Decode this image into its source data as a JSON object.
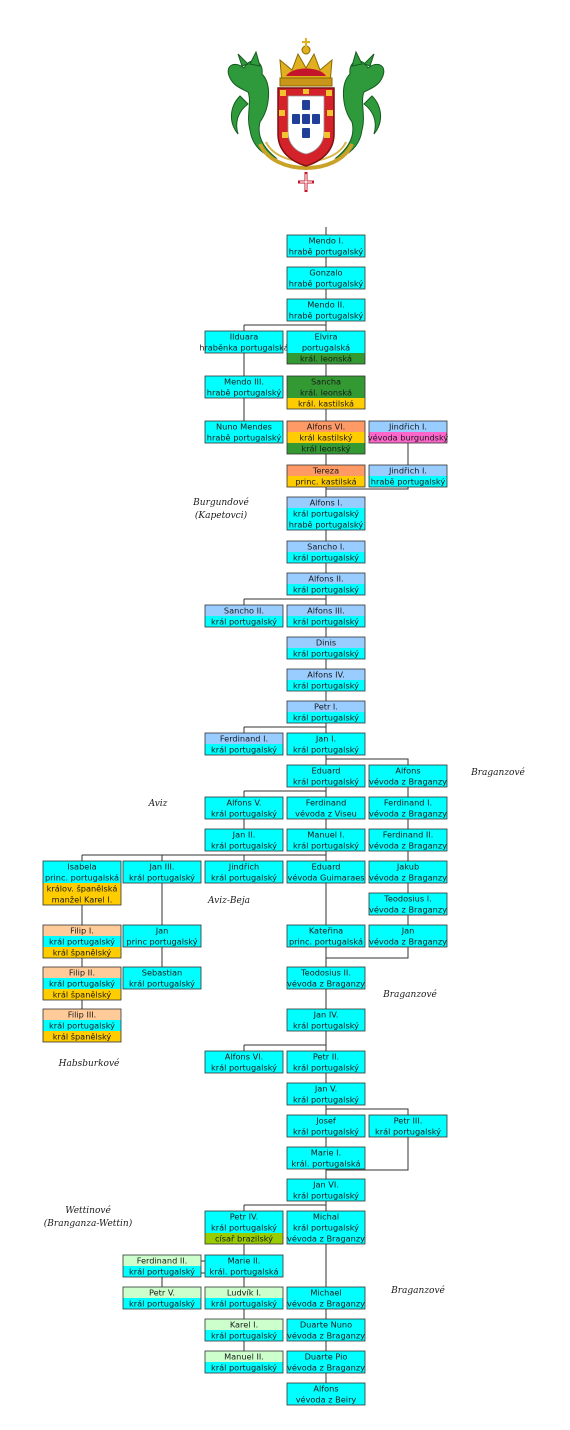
{
  "colors": {
    "portugal": "#00FFFF",
    "burgundy_house": "#99CCFF",
    "leon": "#339933",
    "castile": "#FFCC00",
    "castile_king": "#FF9966",
    "habsburg": "#FFCC99",
    "burgundy_duke": "#FF66CC",
    "brazil": "#99CC00",
    "wettin": "#CCFFCC",
    "line": "#333333"
  },
  "coat_of_arms": {
    "icon": "portuguese-royal-arms-icon"
  },
  "houses": [
    {
      "id": "burgundove",
      "lines": [
        "Burgundové",
        "(Kapetovci)"
      ]
    },
    {
      "id": "braganzove-1",
      "lines": [
        "Braganzové"
      ]
    },
    {
      "id": "aviz",
      "lines": [
        "Aviz"
      ]
    },
    {
      "id": "aviz-beja",
      "lines": [
        "Aviz-Beja"
      ]
    },
    {
      "id": "braganzove-2",
      "lines": [
        "Braganzové"
      ]
    },
    {
      "id": "habsburkove",
      "lines": [
        "Habsburkové"
      ]
    },
    {
      "id": "wettinove",
      "lines": [
        "Wettinové",
        "(Branganza-Wettin)"
      ]
    },
    {
      "id": "braganzove-3",
      "lines": [
        "Braganzové"
      ]
    }
  ],
  "people": [
    {
      "id": "mendo1",
      "lines": [
        {
          "t": "Mendo I.",
          "c": "portugal"
        },
        {
          "t": "hrabě portugalský",
          "c": "portugal"
        }
      ]
    },
    {
      "id": "gonzalo",
      "lines": [
        {
          "t": "Gonzalo",
          "c": "portugal"
        },
        {
          "t": "hrabě portugalský",
          "c": "portugal"
        }
      ]
    },
    {
      "id": "mendo2",
      "lines": [
        {
          "t": "Mendo II.",
          "c": "portugal"
        },
        {
          "t": "hrabě portugalský",
          "c": "portugal"
        }
      ]
    },
    {
      "id": "ilduara",
      "lines": [
        {
          "t": "Ilduara",
          "c": "portugal"
        },
        {
          "t": "hraběnka portugalská",
          "c": "portugal"
        }
      ]
    },
    {
      "id": "elvira",
      "lines": [
        {
          "t": "Elvira",
          "c": "portugal"
        },
        {
          "t": "portugalská",
          "c": "portugal"
        },
        {
          "t": "král. leonská",
          "c": "leon"
        }
      ]
    },
    {
      "id": "mendo3",
      "lines": [
        {
          "t": "Mendo III.",
          "c": "portugal"
        },
        {
          "t": "hrabě portugalský",
          "c": "portugal"
        }
      ]
    },
    {
      "id": "sancha",
      "lines": [
        {
          "t": "Sancha",
          "c": "leon"
        },
        {
          "t": "král. leonská",
          "c": "leon"
        },
        {
          "t": "král. kastilská",
          "c": "castile"
        }
      ]
    },
    {
      "id": "nuno",
      "lines": [
        {
          "t": "Nuno Mendes",
          "c": "portugal"
        },
        {
          "t": "hrabě portugalský",
          "c": "portugal"
        }
      ]
    },
    {
      "id": "alfons6",
      "lines": [
        {
          "t": "Alfons VI.",
          "c": "castile_king"
        },
        {
          "t": "král kastilský",
          "c": "castile"
        },
        {
          "t": "král leonský",
          "c": "leon"
        }
      ]
    },
    {
      "id": "jindrich1a",
      "lines": [
        {
          "t": "Jindřich I.",
          "c": "burgundy_house"
        },
        {
          "t": "vévoda burgundský",
          "c": "burgundy_duke"
        }
      ]
    },
    {
      "id": "tereza",
      "lines": [
        {
          "t": "Tereza",
          "c": "castile_king"
        },
        {
          "t": "princ. kastilská",
          "c": "castile"
        }
      ]
    },
    {
      "id": "jindrich1b",
      "lines": [
        {
          "t": "Jindřich I.",
          "c": "burgundy_house"
        },
        {
          "t": "hrabě portugalský",
          "c": "portugal"
        }
      ]
    },
    {
      "id": "alfons1",
      "lines": [
        {
          "t": "Alfons I.",
          "c": "burgundy_house"
        },
        {
          "t": "král portugalský",
          "c": "portugal"
        },
        {
          "t": "hrabě portugalský",
          "c": "portugal"
        }
      ]
    },
    {
      "id": "sancho1",
      "lines": [
        {
          "t": "Sancho I.",
          "c": "burgundy_house"
        },
        {
          "t": "král portugalský",
          "c": "portugal"
        }
      ]
    },
    {
      "id": "alfons2",
      "lines": [
        {
          "t": "Alfons II.",
          "c": "burgundy_house"
        },
        {
          "t": "král portugalský",
          "c": "portugal"
        }
      ]
    },
    {
      "id": "sancho2",
      "lines": [
        {
          "t": "Sancho II.",
          "c": "burgundy_house"
        },
        {
          "t": "král portugalský",
          "c": "portugal"
        }
      ]
    },
    {
      "id": "alfons3",
      "lines": [
        {
          "t": "Alfons III.",
          "c": "burgundy_house"
        },
        {
          "t": "král portugalský",
          "c": "portugal"
        }
      ]
    },
    {
      "id": "dinis",
      "lines": [
        {
          "t": "Dinis",
          "c": "burgundy_house"
        },
        {
          "t": "král portugalský",
          "c": "portugal"
        }
      ]
    },
    {
      "id": "alfons4",
      "lines": [
        {
          "t": "Alfons IV.",
          "c": "burgundy_house"
        },
        {
          "t": "král portugalský",
          "c": "portugal"
        }
      ]
    },
    {
      "id": "petr1",
      "lines": [
        {
          "t": "Petr I.",
          "c": "burgundy_house"
        },
        {
          "t": "král portugalský",
          "c": "portugal"
        }
      ]
    },
    {
      "id": "ferdinand1",
      "lines": [
        {
          "t": "Ferdinand I.",
          "c": "burgundy_house"
        },
        {
          "t": "král portugalský",
          "c": "portugal"
        }
      ]
    },
    {
      "id": "jan1",
      "lines": [
        {
          "t": "Jan I.",
          "c": "portugal"
        },
        {
          "t": "král portugalský",
          "c": "portugal"
        }
      ]
    },
    {
      "id": "eduard",
      "lines": [
        {
          "t": "Eduard",
          "c": "portugal"
        },
        {
          "t": "král portugalský",
          "c": "portugal"
        }
      ]
    },
    {
      "id": "alfons_b",
      "lines": [
        {
          "t": "Alfons",
          "c": "portugal"
        },
        {
          "t": "vévoda z Braganzy",
          "c": "portugal"
        }
      ]
    },
    {
      "id": "alfons5",
      "lines": [
        {
          "t": "Alfons V.",
          "c": "portugal"
        },
        {
          "t": "král portugalský",
          "c": "portugal"
        }
      ]
    },
    {
      "id": "ferdinand_v",
      "lines": [
        {
          "t": "Ferdinand",
          "c": "portugal"
        },
        {
          "t": "vévoda z Viseu",
          "c": "portugal"
        }
      ]
    },
    {
      "id": "ferdinand1_b",
      "lines": [
        {
          "t": "Ferdinand I.",
          "c": "portugal"
        },
        {
          "t": "vévoda z Braganzy",
          "c": "portugal"
        }
      ]
    },
    {
      "id": "jan2",
      "lines": [
        {
          "t": "Jan II.",
          "c": "portugal"
        },
        {
          "t": "král portugalský",
          "c": "portugal"
        }
      ]
    },
    {
      "id": "manuel1",
      "lines": [
        {
          "t": "Manuel I.",
          "c": "portugal"
        },
        {
          "t": "král portugalský",
          "c": "portugal"
        }
      ]
    },
    {
      "id": "ferdinand2_b",
      "lines": [
        {
          "t": "Ferdinand II.",
          "c": "portugal"
        },
        {
          "t": "vévoda z Braganzy",
          "c": "portugal"
        }
      ]
    },
    {
      "id": "isabela",
      "lines": [
        {
          "t": "Isabela",
          "c": "portugal"
        },
        {
          "t": "princ. portugalská",
          "c": "portugal"
        },
        {
          "t": "králov. španělská",
          "c": "castile"
        },
        {
          "t": "manžel Karel I.",
          "c": "castile"
        }
      ]
    },
    {
      "id": "jan3",
      "lines": [
        {
          "t": "Jan III.",
          "c": "portugal"
        },
        {
          "t": "král portugalský",
          "c": "portugal"
        }
      ]
    },
    {
      "id": "jindrich",
      "lines": [
        {
          "t": "Jindřich",
          "c": "portugal"
        },
        {
          "t": "král portugalský",
          "c": "portugal"
        }
      ]
    },
    {
      "id": "eduard_g",
      "lines": [
        {
          "t": "Eduard",
          "c": "portugal"
        },
        {
          "t": "vévoda Guimaraes",
          "c": "portugal"
        }
      ]
    },
    {
      "id": "jakub",
      "lines": [
        {
          "t": "Jakub",
          "c": "portugal"
        },
        {
          "t": "vévoda z Braganzy",
          "c": "portugal"
        }
      ]
    },
    {
      "id": "teodosius1",
      "lines": [
        {
          "t": "Teodosius I.",
          "c": "portugal"
        },
        {
          "t": "vévoda z Braganzy",
          "c": "portugal"
        }
      ]
    },
    {
      "id": "filip1",
      "lines": [
        {
          "t": "Filip I.",
          "c": "habsburg"
        },
        {
          "t": "král portugalský",
          "c": "portugal"
        },
        {
          "t": "král španělský",
          "c": "castile"
        }
      ]
    },
    {
      "id": "jan_p",
      "lines": [
        {
          "t": "Jan",
          "c": "portugal"
        },
        {
          "t": "princ portugalský",
          "c": "portugal"
        }
      ]
    },
    {
      "id": "katerina",
      "lines": [
        {
          "t": "Kateřina",
          "c": "portugal"
        },
        {
          "t": "princ. portugalská",
          "c": "portugal"
        }
      ]
    },
    {
      "id": "jan_b",
      "lines": [
        {
          "t": "Jan",
          "c": "portugal"
        },
        {
          "t": "vévoda z Braganzy",
          "c": "portugal"
        }
      ]
    },
    {
      "id": "filip2",
      "lines": [
        {
          "t": "Filip II.",
          "c": "habsburg"
        },
        {
          "t": "král portugalský",
          "c": "portugal"
        },
        {
          "t": "král španělský",
          "c": "castile"
        }
      ]
    },
    {
      "id": "sebastian",
      "lines": [
        {
          "t": "Sebastian",
          "c": "portugal"
        },
        {
          "t": "král portugalský",
          "c": "portugal"
        }
      ]
    },
    {
      "id": "teodosius2",
      "lines": [
        {
          "t": "Teodosius II.",
          "c": "portugal"
        },
        {
          "t": "vévoda z Braganzy",
          "c": "portugal"
        }
      ]
    },
    {
      "id": "filip3",
      "lines": [
        {
          "t": "Filip III.",
          "c": "habsburg"
        },
        {
          "t": "král portugalský",
          "c": "portugal"
        },
        {
          "t": "král španělský",
          "c": "castile"
        }
      ]
    },
    {
      "id": "jan4",
      "lines": [
        {
          "t": "Jan IV.",
          "c": "portugal"
        },
        {
          "t": "král portugalský",
          "c": "portugal"
        }
      ]
    },
    {
      "id": "alfons6p",
      "lines": [
        {
          "t": "Alfons VI.",
          "c": "portugal"
        },
        {
          "t": "král portugalský",
          "c": "portugal"
        }
      ]
    },
    {
      "id": "petr2",
      "lines": [
        {
          "t": "Petr II.",
          "c": "portugal"
        },
        {
          "t": "král portugalský",
          "c": "portugal"
        }
      ]
    },
    {
      "id": "jan5",
      "lines": [
        {
          "t": "Jan V.",
          "c": "portugal"
        },
        {
          "t": "král portugalský",
          "c": "portugal"
        }
      ]
    },
    {
      "id": "josef",
      "lines": [
        {
          "t": "Josef",
          "c": "portugal"
        },
        {
          "t": "král portugalský",
          "c": "portugal"
        }
      ]
    },
    {
      "id": "petr3",
      "lines": [
        {
          "t": "Petr III.",
          "c": "portugal"
        },
        {
          "t": "král portugalský",
          "c": "portugal"
        }
      ]
    },
    {
      "id": "marie1",
      "lines": [
        {
          "t": "Marie I.",
          "c": "portugal"
        },
        {
          "t": "král. portugalská",
          "c": "portugal"
        }
      ]
    },
    {
      "id": "jan6",
      "lines": [
        {
          "t": "Jan VI.",
          "c": "portugal"
        },
        {
          "t": "král portugalský",
          "c": "portugal"
        }
      ]
    },
    {
      "id": "petr4",
      "lines": [
        {
          "t": "Petr IV.",
          "c": "portugal"
        },
        {
          "t": "král portugalský",
          "c": "portugal"
        },
        {
          "t": "císař brazilský",
          "c": "brazil"
        }
      ]
    },
    {
      "id": "michal",
      "lines": [
        {
          "t": "Michal",
          "c": "portugal"
        },
        {
          "t": "král portugalský",
          "c": "portugal"
        },
        {
          "t": "vévoda z Braganzy",
          "c": "portugal"
        }
      ]
    },
    {
      "id": "ferdinand2",
      "lines": [
        {
          "t": "Ferdinand II.",
          "c": "wettin"
        },
        {
          "t": "král portugalský",
          "c": "portugal"
        }
      ]
    },
    {
      "id": "marie2",
      "lines": [
        {
          "t": "Marie II.",
          "c": "portugal"
        },
        {
          "t": "král. portugalská",
          "c": "portugal"
        }
      ]
    },
    {
      "id": "petr5",
      "lines": [
        {
          "t": "Petr V.",
          "c": "wettin"
        },
        {
          "t": "král portugalský",
          "c": "portugal"
        }
      ]
    },
    {
      "id": "ludvik1",
      "lines": [
        {
          "t": "Ludvík I.",
          "c": "wettin"
        },
        {
          "t": "král portugalský",
          "c": "portugal"
        }
      ]
    },
    {
      "id": "michael",
      "lines": [
        {
          "t": "Michael",
          "c": "portugal"
        },
        {
          "t": "vévoda z Braganzy",
          "c": "portugal"
        }
      ]
    },
    {
      "id": "karel1",
      "lines": [
        {
          "t": "Karel I.",
          "c": "wettin"
        },
        {
          "t": "král portugalský",
          "c": "portugal"
        }
      ]
    },
    {
      "id": "duarte_nuno",
      "lines": [
        {
          "t": "Duarte Nuno",
          "c": "portugal"
        },
        {
          "t": "vévoda z Braganzy",
          "c": "portugal"
        }
      ]
    },
    {
      "id": "manuel2",
      "lines": [
        {
          "t": "Manuel II.",
          "c": "wettin"
        },
        {
          "t": "král portugalský",
          "c": "portugal"
        }
      ]
    },
    {
      "id": "duarte_pio",
      "lines": [
        {
          "t": "Duarte Pio",
          "c": "portugal"
        },
        {
          "t": "vévoda z Braganzy",
          "c": "portugal"
        }
      ]
    },
    {
      "id": "alfons_beira",
      "lines": [
        {
          "t": "Alfons",
          "c": "portugal"
        },
        {
          "t": "vévoda z Beiry",
          "c": "portugal"
        }
      ]
    }
  ]
}
